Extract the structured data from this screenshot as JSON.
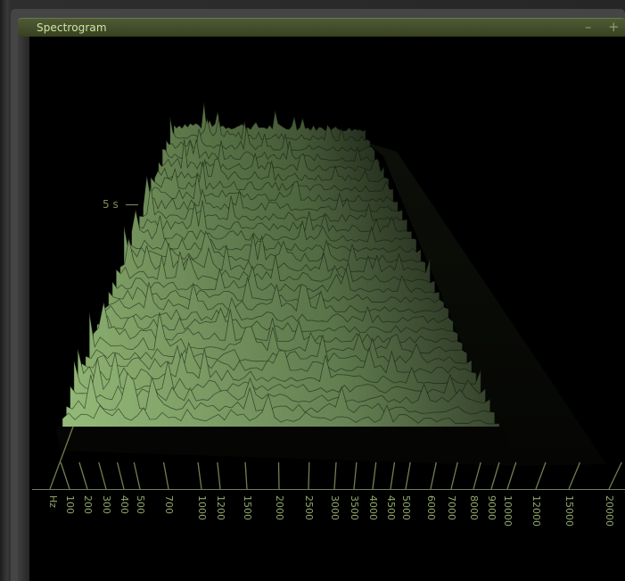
{
  "window": {
    "title": "Spectrogram",
    "minimize_label": "–",
    "maximize_label": "+"
  },
  "axis": {
    "time_label": "5 s",
    "freq_unit": "Hz",
    "freq_ticks": [
      "100",
      "200",
      "300",
      "400",
      "500",
      "700",
      "1000",
      "1200",
      "1500",
      "2000",
      "2500",
      "3000",
      "3500",
      "4000",
      "4500",
      "5000",
      "6000",
      "7000",
      "8000",
      "9000",
      "10000",
      "12000",
      "15000",
      "20000"
    ]
  },
  "colors": {
    "surface_light": "#a9c98a",
    "surface_dark": "#1c2516",
    "axis": "#6f8050",
    "title_text": "#cfe6a0"
  }
}
